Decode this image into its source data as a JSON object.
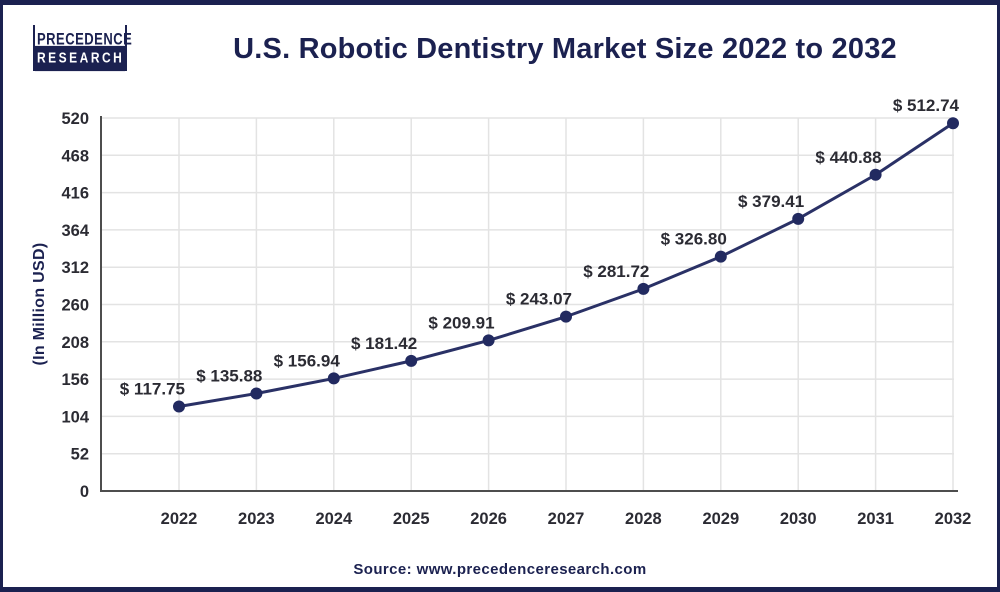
{
  "header": {
    "logo": {
      "line1": "PRECEDENCE",
      "line2": "RESEARCH"
    },
    "title": "U.S. Robotic Dentistry Market Size 2022 to 2032"
  },
  "chart_data": {
    "type": "line",
    "title": "U.S. Robotic Dentistry Market Size 2022 to 2032",
    "x": [
      2022,
      2023,
      2024,
      2025,
      2026,
      2027,
      2028,
      2029,
      2030,
      2031,
      2032
    ],
    "values": [
      117.75,
      135.88,
      156.94,
      181.42,
      209.91,
      243.07,
      281.72,
      326.8,
      379.41,
      440.88,
      512.74
    ],
    "label_prefix": "$ ",
    "xlabel": "",
    "ylabel": "(In Million USD)",
    "ylim": [
      0,
      520
    ],
    "yticks": [
      0,
      52,
      104,
      156,
      208,
      260,
      312,
      364,
      416,
      468,
      520
    ],
    "grid": true,
    "legend": "none"
  },
  "colors": {
    "accent_navy": "#1b2150",
    "line": "#2a3166",
    "marker": "#222a60",
    "tick_text": "#2b2b33",
    "gridline": "#e3e3e3",
    "axis": "#4d4d4d"
  },
  "footer": {
    "source": "Source: www.precedenceresearch.com"
  }
}
